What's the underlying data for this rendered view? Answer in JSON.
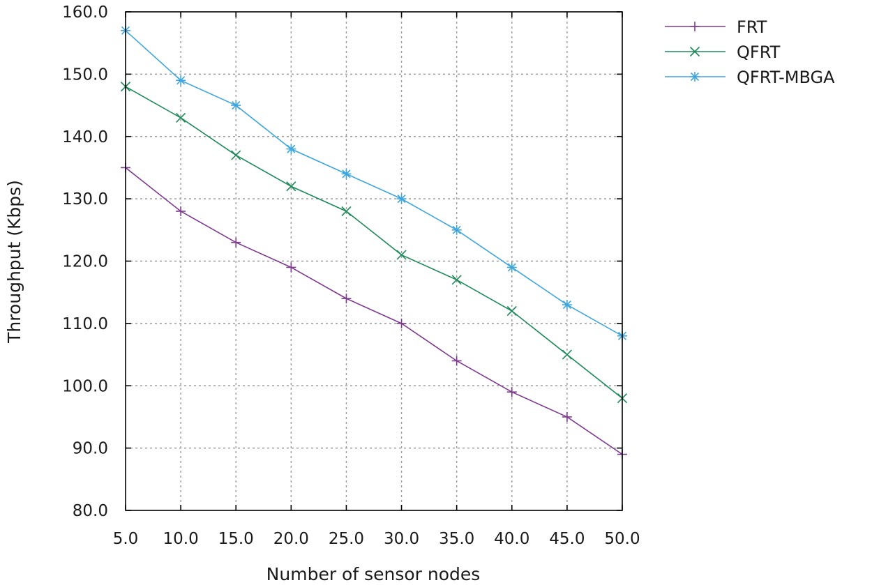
{
  "chart_data": {
    "type": "line",
    "title": "",
    "xlabel": "Number of sensor nodes",
    "ylabel": "Throughput (Kbps)",
    "x": [
      5,
      10,
      15,
      20,
      25,
      30,
      35,
      40,
      45,
      50
    ],
    "xlim": [
      5,
      50
    ],
    "ylim": [
      80,
      160
    ],
    "xticks": [
      "5.0",
      "10.0",
      "15.0",
      "20.0",
      "25.0",
      "30.0",
      "35.0",
      "40.0",
      "45.0",
      "50.0"
    ],
    "yticks": [
      "80.0",
      "90.0",
      "100.0",
      "110.0",
      "120.0",
      "130.0",
      "140.0",
      "150.0",
      "160.0"
    ],
    "grid": true,
    "legend_position": "outside-top-right",
    "series": [
      {
        "name": "FRT",
        "color": "#7e3a8f",
        "marker": "plus",
        "values": [
          135,
          128,
          123,
          119,
          114,
          110,
          104,
          99,
          95,
          89
        ]
      },
      {
        "name": "QFRT",
        "color": "#1f8a5a",
        "marker": "cross",
        "values": [
          148,
          143,
          137,
          132,
          128,
          121,
          117,
          112,
          105,
          98
        ]
      },
      {
        "name": "QFRT-MBGA",
        "color": "#3fa6dc",
        "marker": "star",
        "values": [
          157,
          149,
          145,
          138,
          134,
          130,
          125,
          119,
          113,
          108
        ]
      }
    ]
  }
}
